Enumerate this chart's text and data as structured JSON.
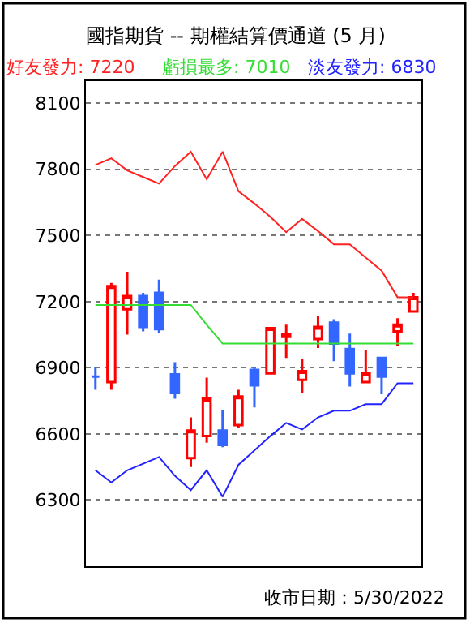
{
  "chart_data": {
    "type": "candlestick",
    "title": "國指期貨 -- 期權結算價通道 (5 月)",
    "categories": [
      null,
      null,
      null,
      null,
      null,
      null,
      null,
      null,
      null,
      null,
      null,
      null,
      null,
      null,
      null,
      null,
      null,
      null,
      null,
      null,
      null
    ],
    "series": [
      {
        "colors": [
          "#3366ff",
          "#ff0000",
          "#ff0000",
          "#3366ff",
          "#3366ff",
          "#3366ff",
          "#ff0000",
          "#ff0000",
          "#3366ff",
          "#ff0000",
          "#3366ff",
          "#ff0000",
          "#ff0000",
          "#ff0000",
          "#ff0000",
          "#3366ff",
          "#3366ff",
          "#ff0000",
          "#3366ff",
          "#ff0000",
          "#ff0000"
        ],
        "ohlc": [
          [
            6860,
            6905,
            6800,
            6860
          ],
          [
            6835,
            7285,
            6800,
            7270
          ],
          [
            7165,
            7335,
            7050,
            7225
          ],
          [
            7225,
            7240,
            7065,
            7085
          ],
          [
            7240,
            7300,
            7060,
            7075
          ],
          [
            6870,
            6925,
            6760,
            6785
          ],
          [
            6490,
            6675,
            6450,
            6615
          ],
          [
            6590,
            6855,
            6560,
            6760
          ],
          [
            6615,
            6710,
            6540,
            6550
          ],
          [
            6640,
            6800,
            6625,
            6770
          ],
          [
            6890,
            6905,
            6720,
            6820
          ],
          [
            6875,
            7085,
            6870,
            7080
          ],
          [
            7040,
            7095,
            6945,
            7050
          ],
          [
            6845,
            6940,
            6785,
            6885
          ],
          [
            7030,
            7135,
            6990,
            7085
          ],
          [
            7105,
            7120,
            6930,
            7010
          ],
          [
            6985,
            7055,
            6815,
            6875
          ],
          [
            6835,
            6980,
            6830,
            6875
          ],
          [
            6945,
            6945,
            6780,
            6860
          ],
          [
            7065,
            7125,
            7000,
            7095
          ],
          [
            7155,
            7240,
            7150,
            7220
          ]
        ]
      },
      {
        "type": "line",
        "name": "好友發力: 7220",
        "color": "#ff2222",
        "values": [
          7820,
          7850,
          7795,
          7765,
          7735,
          7815,
          7880,
          7755,
          7880,
          7700,
          7645,
          7585,
          7515,
          7575,
          7520,
          7460,
          7460,
          7400,
          7340,
          7220,
          7220
        ]
      },
      {
        "type": "line",
        "name": "虧損最多: 7010",
        "color": "#33dd33",
        "values": [
          7185,
          7185,
          7185,
          7185,
          7185,
          7185,
          7185,
          7095,
          7010,
          7010,
          7010,
          7010,
          7010,
          7010,
          7010,
          7010,
          7010,
          7010,
          7010,
          7010,
          7010
        ]
      },
      {
        "type": "line",
        "name": "淡友發力: 6830",
        "color": "#2222ff",
        "values": [
          6435,
          6380,
          6435,
          6465,
          6495,
          6410,
          6345,
          6435,
          6315,
          6460,
          6525,
          6590,
          6650,
          6620,
          6675,
          6705,
          6705,
          6735,
          6735,
          6830,
          6830
        ]
      }
    ],
    "ylim": [
      6000,
      8200
    ],
    "yticks": [
      6300,
      6600,
      6900,
      7200,
      7500,
      7800,
      8100
    ],
    "grid": "y",
    "annotations": [
      "收市日期：5/30/2022"
    ]
  }
}
